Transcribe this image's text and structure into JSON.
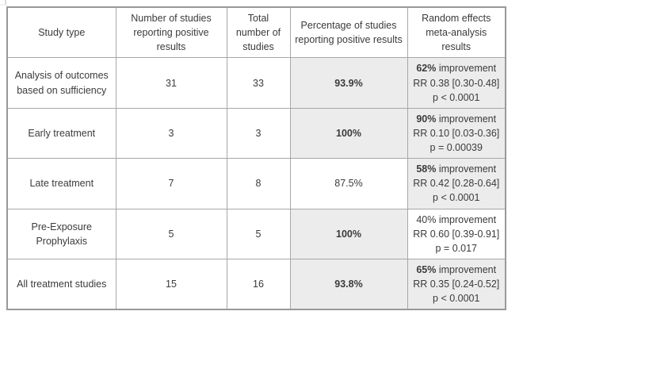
{
  "colors": {
    "highlight_bg": "#ececec",
    "border": "#a7a7a7",
    "text": "#3b3b3b"
  },
  "table": {
    "headers": [
      "Study type",
      "Number of studies reporting positive results",
      "Total number of studies",
      "Percentage of studies reporting positive results",
      "Random effects meta-analysis results"
    ],
    "rows": [
      {
        "study_type": "Analysis of outcomes based on sufficiency",
        "positive": "31",
        "total": "33",
        "percentage": "93.9%",
        "percentage_bold": true,
        "percentage_highlight": true,
        "meta": {
          "pct": "62%",
          "pct_bold": true,
          "rest": " improvement",
          "rr": "RR 0.38 [0.30-0.48]",
          "p": "p < 0.0001",
          "highlight": true
        }
      },
      {
        "study_type": "Early treatment",
        "positive": "3",
        "total": "3",
        "percentage": "100%",
        "percentage_bold": true,
        "percentage_highlight": true,
        "meta": {
          "pct": "90%",
          "pct_bold": true,
          "rest": " improvement",
          "rr": "RR 0.10 [0.03-0.36]",
          "p": "p = 0.00039",
          "highlight": true
        }
      },
      {
        "study_type": "Late treatment",
        "positive": "7",
        "total": "8",
        "percentage": "87.5%",
        "percentage_bold": false,
        "percentage_highlight": false,
        "meta": {
          "pct": "58%",
          "pct_bold": true,
          "rest": " improvement",
          "rr": "RR 0.42 [0.28-0.64]",
          "p": "p < 0.0001",
          "highlight": true
        }
      },
      {
        "study_type": "Pre-Exposure Prophylaxis",
        "positive": "5",
        "total": "5",
        "percentage": "100%",
        "percentage_bold": true,
        "percentage_highlight": true,
        "meta": {
          "pct": "40%",
          "pct_bold": false,
          "rest": " improvement",
          "rr": "RR 0.60 [0.39-0.91]",
          "p": "p = 0.017",
          "highlight": false
        }
      },
      {
        "study_type": "All treatment studies",
        "positive": "15",
        "total": "16",
        "percentage": "93.8%",
        "percentage_bold": true,
        "percentage_highlight": true,
        "meta": {
          "pct": "65%",
          "pct_bold": true,
          "rest": " improvement",
          "rr": "RR 0.35 [0.24-0.52]",
          "p": "p < 0.0001",
          "highlight": true
        }
      }
    ]
  },
  "chart_data": {
    "type": "table",
    "columns": [
      "Study type",
      "Number of studies reporting positive results",
      "Total number of studies",
      "Percentage of studies reporting positive results",
      "Random effects meta-analysis results"
    ],
    "rows": [
      [
        "Analysis of outcomes based on sufficiency",
        31,
        33,
        "93.9%",
        "62% improvement RR 0.38 [0.30-0.48] p < 0.0001"
      ],
      [
        "Early treatment",
        3,
        3,
        "100%",
        "90% improvement RR 0.10 [0.03-0.36] p = 0.00039"
      ],
      [
        "Late treatment",
        7,
        8,
        "87.5%",
        "58% improvement RR 0.42 [0.28-0.64] p < 0.0001"
      ],
      [
        "Pre-Exposure Prophylaxis",
        5,
        5,
        "100%",
        "40% improvement RR 0.60 [0.39-0.91] p = 0.017"
      ],
      [
        "All treatment studies",
        15,
        16,
        "93.8%",
        "65% improvement RR 0.35 [0.24-0.52] p < 0.0001"
      ]
    ]
  }
}
